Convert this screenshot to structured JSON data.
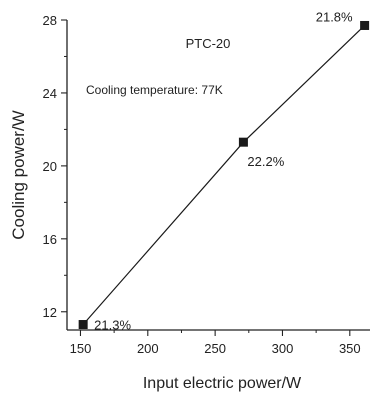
{
  "chart_data": {
    "type": "line",
    "title": "PTC-20",
    "subtitle": "Cooling temperature: 77K",
    "xlabel": "Input electric power/W",
    "ylabel": "Cooling power/W",
    "xlim": [
      140,
      365
    ],
    "ylim": [
      11,
      28
    ],
    "x_ticks": [
      150,
      200,
      250,
      300,
      350
    ],
    "y_ticks": [
      12,
      16,
      20,
      24,
      28
    ],
    "grid": false,
    "legend": "none",
    "series": [
      {
        "points": [
          {
            "x": 152,
            "y": 11.3,
            "label": "21.3%"
          },
          {
            "x": 271,
            "y": 21.3,
            "label": "22.2%"
          },
          {
            "x": 361,
            "y": 27.7,
            "label": "21.8%"
          }
        ]
      }
    ],
    "colors": {
      "line": "#1a1a1a",
      "marker": "#1a1a1a",
      "axis": "#222222",
      "text": "#222222"
    }
  }
}
